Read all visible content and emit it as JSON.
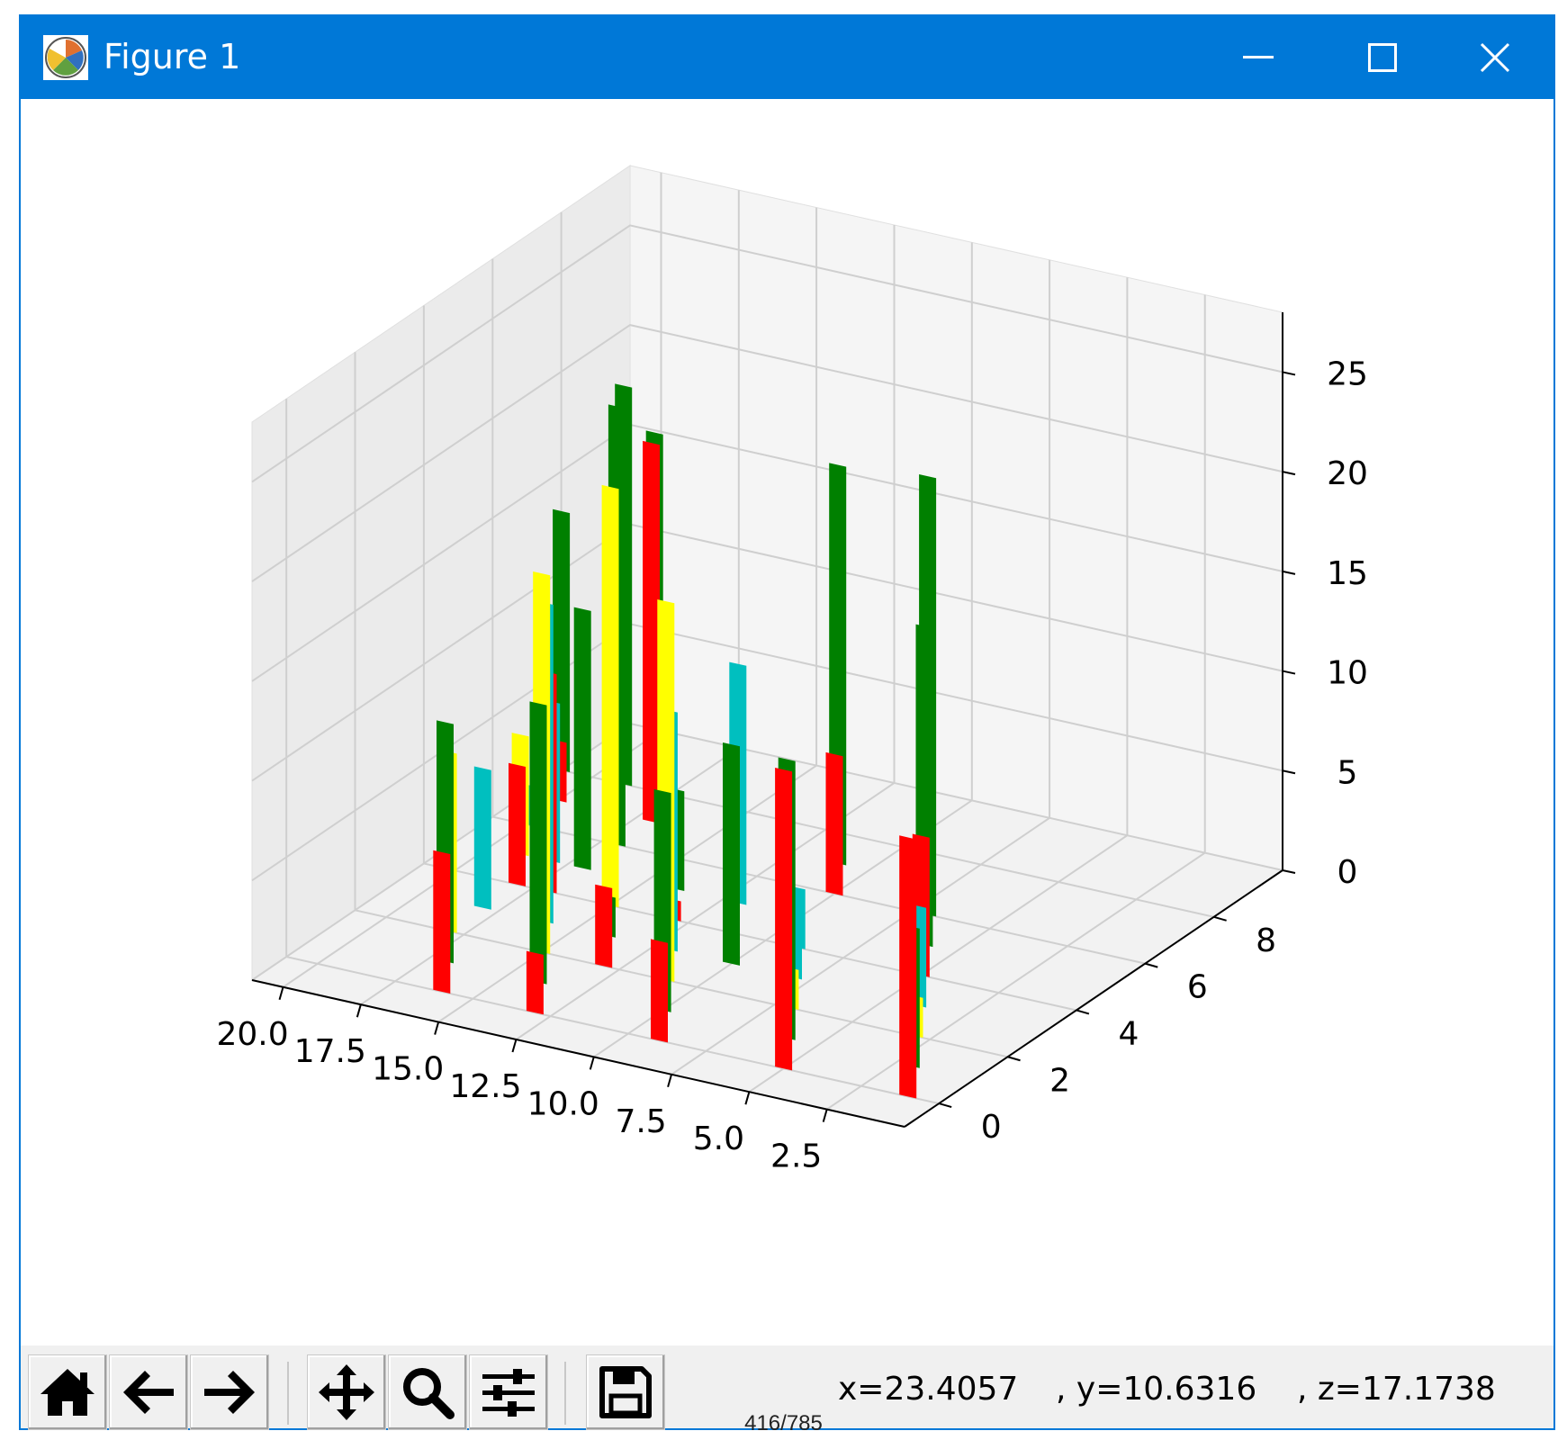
{
  "window": {
    "title": "Figure 1"
  },
  "toolbar": {
    "buttons": [
      {
        "name": "home-button",
        "icon": "home-icon"
      },
      {
        "name": "back-button",
        "icon": "arrow-left-icon"
      },
      {
        "name": "forward-button",
        "icon": "arrow-right-icon"
      },
      {
        "name": "pan-button",
        "icon": "move-icon"
      },
      {
        "name": "zoom-button",
        "icon": "magnifier-icon"
      },
      {
        "name": "configure-subplots-button",
        "icon": "sliders-icon"
      },
      {
        "name": "save-button",
        "icon": "floppy-disk-icon"
      }
    ],
    "coords": {
      "x": "x=23.4057",
      "y": ", y=10.6316",
      "z": ", z=17.1738"
    }
  },
  "footer": {
    "counter": "416/785"
  },
  "colors": {
    "titlebar": "#0078d7",
    "red": "#ff0000",
    "green": "#008000",
    "yellow": "#ffff00",
    "cyan": "#00bfbf"
  },
  "chart_data": {
    "type": "bar",
    "projection": "3d",
    "title": "",
    "xlabel": "",
    "ylabel": "",
    "zlabel": "",
    "xticks": [
      "2.5",
      "5.0",
      "7.5",
      "10.0",
      "12.5",
      "15.0",
      "17.5",
      "20.0"
    ],
    "yticks": [
      "0",
      "2",
      "4",
      "6",
      "8"
    ],
    "zticks": [
      "0",
      "5",
      "10",
      "15",
      "20",
      "25"
    ],
    "xlim": [
      0,
      21
    ],
    "ylim": [
      -1,
      10
    ],
    "zlim": [
      0,
      28
    ],
    "grid": true,
    "bars": [
      {
        "x": 1,
        "y": 0,
        "z": 13,
        "color": "red"
      },
      {
        "x": 2,
        "y": 1,
        "z": 7,
        "color": "green"
      },
      {
        "x": 3,
        "y": 2,
        "z": 2,
        "color": "yellow"
      },
      {
        "x": 4,
        "y": 3,
        "z": 5,
        "color": "cyan"
      },
      {
        "x": 5,
        "y": 4,
        "z": 7,
        "color": "red"
      },
      {
        "x": 6,
        "y": 5,
        "z": 16,
        "color": "green"
      },
      {
        "x": 7,
        "y": 6,
        "z": 22,
        "color": "green"
      },
      {
        "x": 5,
        "y": 0,
        "z": 15,
        "color": "red"
      },
      {
        "x": 6,
        "y": 1,
        "z": 14,
        "color": "green"
      },
      {
        "x": 7,
        "y": 2,
        "z": 2,
        "color": "yellow"
      },
      {
        "x": 8,
        "y": 3,
        "z": 4,
        "color": "cyan"
      },
      {
        "x": 9,
        "y": 4,
        "z": 3,
        "color": "cyan"
      },
      {
        "x": 10,
        "y": 6,
        "z": 7,
        "color": "red"
      },
      {
        "x": 11,
        "y": 7,
        "z": 20,
        "color": "green"
      },
      {
        "x": 9,
        "y": 0,
        "z": 5,
        "color": "red"
      },
      {
        "x": 10,
        "y": 1,
        "z": 11,
        "color": "green"
      },
      {
        "x": 10,
        "y": 3,
        "z": 11,
        "color": "green"
      },
      {
        "x": 11,
        "y": 2,
        "z": 19,
        "color": "yellow"
      },
      {
        "x": 12,
        "y": 3,
        "z": 12,
        "color": "cyan"
      },
      {
        "x": 12,
        "y": 5,
        "z": 12,
        "color": "cyan"
      },
      {
        "x": 13,
        "y": 4,
        "z": 1,
        "color": "red"
      },
      {
        "x": 14,
        "y": 5,
        "z": 5,
        "color": "green"
      },
      {
        "x": 13,
        "y": 0,
        "z": 3,
        "color": "red"
      },
      {
        "x": 14,
        "y": 1,
        "z": 14,
        "color": "green"
      },
      {
        "x": 13,
        "y": 2,
        "z": 4,
        "color": "red"
      },
      {
        "x": 14,
        "y": 3,
        "z": 2,
        "color": "green"
      },
      {
        "x": 15,
        "y": 2,
        "z": 19,
        "color": "yellow"
      },
      {
        "x": 16,
        "y": 3,
        "z": 16,
        "color": "cyan"
      },
      {
        "x": 17,
        "y": 4,
        "z": 11,
        "color": "red"
      },
      {
        "x": 17,
        "y": 5,
        "z": 13,
        "color": "green"
      },
      {
        "x": 15,
        "y": 4,
        "z": 21,
        "color": "yellow"
      },
      {
        "x": 17,
        "y": 6,
        "z": 22,
        "color": "green"
      },
      {
        "x": 16,
        "y": 0,
        "z": 7,
        "color": "red"
      },
      {
        "x": 17,
        "y": 1,
        "z": 12,
        "color": "green"
      },
      {
        "x": 18,
        "y": 2,
        "z": 9,
        "color": "yellow"
      },
      {
        "x": 18,
        "y": 3,
        "z": 7,
        "color": "cyan"
      },
      {
        "x": 18,
        "y": 4,
        "z": 6,
        "color": "red"
      },
      {
        "x": 18,
        "y": 5,
        "z": 8,
        "color": "cyan"
      },
      {
        "x": 17,
        "y": 7,
        "z": 19,
        "color": "red"
      },
      {
        "x": 18,
        "y": 8,
        "z": 18,
        "color": "green"
      },
      {
        "x": 19,
        "y": 8,
        "z": 20,
        "color": "green"
      },
      {
        "x": 19,
        "y": 5,
        "z": 6,
        "color": "yellow"
      },
      {
        "x": 20,
        "y": 6,
        "z": 2,
        "color": "cyan"
      },
      {
        "x": 20,
        "y": 7,
        "z": 3,
        "color": "red"
      },
      {
        "x": 21,
        "y": 8,
        "z": 13,
        "color": "green"
      }
    ]
  }
}
